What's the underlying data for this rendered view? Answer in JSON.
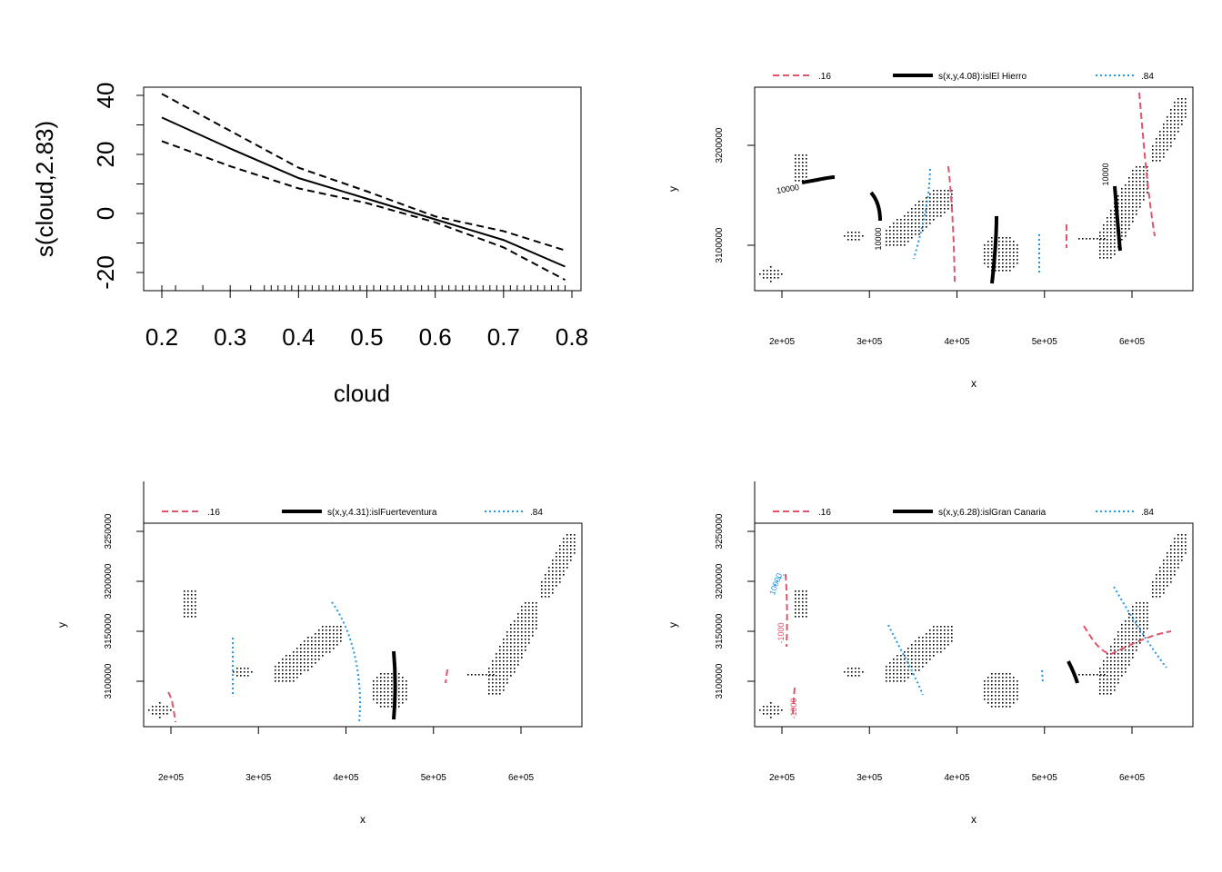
{
  "colors": {
    "black": "#000000",
    "red": "#DF536B",
    "blue": "#2297E6"
  },
  "chart_data": [
    {
      "type": "line",
      "xlabel": "cloud",
      "ylabel": "s(cloud,2.83)",
      "xlim": [
        0.2,
        0.8
      ],
      "ylim": [
        -20,
        40
      ],
      "x_ticks": [
        "0.2",
        "0.3",
        "0.4",
        "0.5",
        "0.6",
        "0.7",
        "0.8"
      ],
      "y_ticks": [
        "-20",
        "0",
        "20",
        "40"
      ],
      "series": [
        {
          "style": "solid",
          "x": [
            0.2,
            0.3,
            0.4,
            0.5,
            0.6,
            0.7,
            0.79
          ],
          "y": [
            32.5,
            22,
            12,
            5,
            -2,
            -9,
            -18
          ]
        },
        {
          "style": "dashed",
          "x": [
            0.2,
            0.3,
            0.4,
            0.5,
            0.6,
            0.7,
            0.79
          ],
          "y": [
            40.5,
            28,
            15.5,
            7.5,
            -1,
            -6,
            -12.5
          ]
        },
        {
          "style": "dashed",
          "x": [
            0.2,
            0.3,
            0.4,
            0.5,
            0.6,
            0.7,
            0.79
          ],
          "y": [
            24.5,
            16,
            8.5,
            3.5,
            -3,
            -11.5,
            -22.5
          ]
        }
      ],
      "rug": [
        0.2,
        0.22,
        0.26,
        0.3,
        0.33,
        0.35,
        0.36,
        0.37,
        0.38,
        0.39,
        0.4,
        0.41,
        0.42,
        0.43,
        0.44,
        0.45,
        0.46,
        0.47,
        0.48,
        0.49,
        0.5,
        0.51,
        0.52,
        0.53,
        0.54,
        0.55,
        0.56,
        0.57,
        0.58,
        0.59,
        0.6,
        0.61,
        0.62,
        0.63,
        0.64,
        0.65,
        0.66,
        0.67,
        0.68,
        0.69,
        0.7,
        0.71,
        0.72,
        0.73,
        0.74,
        0.75,
        0.76,
        0.77,
        0.78,
        0.79
      ]
    },
    {
      "type": "scatter",
      "xlabel": "x",
      "ylabel": "y",
      "xlim": [
        170000,
        660000
      ],
      "ylim": [
        3055000,
        3260000
      ],
      "x_ticks": [
        "2e+05",
        "3e+05",
        "4e+05",
        "5e+05",
        "6e+05"
      ],
      "y_ticks": [
        "3100000",
        "3200000"
      ],
      "legend": {
        "placement": "top",
        "labels": [
          ".16",
          "s(x,y,4.08):islEl Hierro",
          ".84"
        ]
      },
      "contour_labels": [
        "10000",
        "10000",
        "10000"
      ]
    },
    {
      "type": "scatter",
      "xlabel": "x",
      "ylabel": "y",
      "xlim": [
        170000,
        660000
      ],
      "ylim": [
        3055000,
        3260000
      ],
      "x_ticks": [
        "2e+05",
        "3e+05",
        "4e+05",
        "5e+05",
        "6e+05"
      ],
      "y_ticks": [
        "3100000",
        "3150000",
        "3200000",
        "3250000"
      ],
      "legend": {
        "placement": "top",
        "labels": [
          ".16",
          "s(x,y,4.31):islFuerteventura",
          ".84"
        ]
      },
      "contour_labels": []
    },
    {
      "type": "scatter",
      "xlabel": "x",
      "ylabel": "y",
      "xlim": [
        170000,
        660000
      ],
      "ylim": [
        3055000,
        3260000
      ],
      "x_ticks": [
        "2e+05",
        "3e+05",
        "4e+05",
        "5e+05",
        "6e+05"
      ],
      "y_ticks": [
        "3100000",
        "3150000",
        "3200000",
        "3250000"
      ],
      "legend": {
        "placement": "top",
        "labels": [
          ".16",
          "s(x,y,6.28):islGran Canaria",
          ".84"
        ]
      },
      "contour_labels": [
        "10000",
        "-1000",
        "-1000"
      ]
    }
  ]
}
